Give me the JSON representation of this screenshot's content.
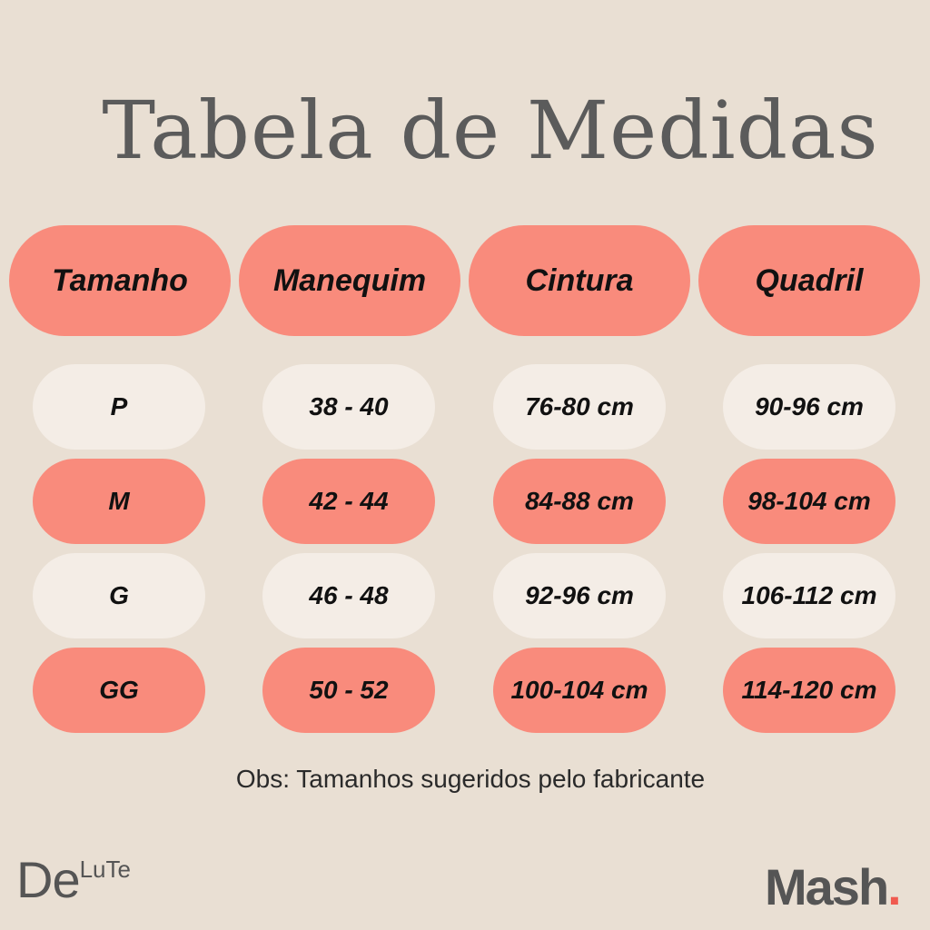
{
  "title": "Tabela de Medidas",
  "colors": {
    "background": "#e9dfd3",
    "coral": "#f98b7c",
    "light": "#f4ede6",
    "title": "#5b5b5b"
  },
  "headers": [
    "Tamanho",
    "Manequim",
    "Cintura",
    "Quadril"
  ],
  "rows": [
    {
      "tamanho": "P",
      "manequim": "38 - 40",
      "cintura": "76-80 cm",
      "quadril": "90-96 cm"
    },
    {
      "tamanho": "M",
      "manequim": "42 - 44",
      "cintura": "84-88 cm",
      "quadril": "98-104 cm"
    },
    {
      "tamanho": "G",
      "manequim": "46 - 48",
      "cintura": "92-96 cm",
      "quadril": "106-112 cm"
    },
    {
      "tamanho": "GG",
      "manequim": "50 - 52",
      "cintura": "100-104 cm",
      "quadril": "114-120 cm"
    }
  ],
  "note": "Obs: Tamanhos sugeridos pelo fabricante",
  "logos": {
    "left": "DeLuTe",
    "right": "Mash"
  }
}
